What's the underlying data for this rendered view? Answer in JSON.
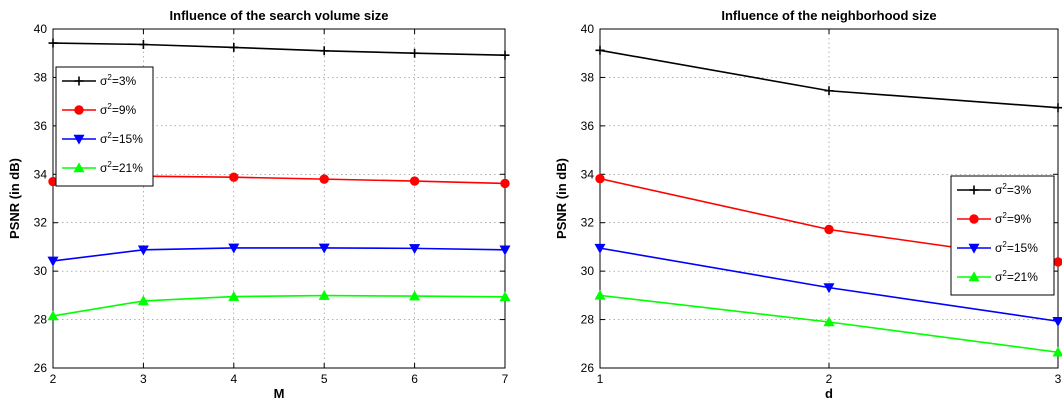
{
  "chart_data": [
    {
      "type": "line",
      "title": "Influence of the search volume size",
      "xlabel": "M",
      "ylabel": "PSNR (in dB)",
      "x": [
        2,
        3,
        4,
        5,
        6,
        7
      ],
      "xlim": [
        2,
        7
      ],
      "ylim": [
        26,
        40
      ],
      "xticks": [
        "2",
        "3",
        "4",
        "5",
        "6",
        "7"
      ],
      "yticks": [
        "26",
        "28",
        "30",
        "32",
        "34",
        "36",
        "38",
        "40"
      ],
      "grid": true,
      "legend_position": "top-left",
      "series": [
        {
          "name": "σ²=3%",
          "name_base": "σ",
          "name_sup": "2",
          "name_tail": "=3%",
          "marker": "plus",
          "color": "#000000",
          "values": [
            39.42,
            39.36,
            39.24,
            39.1,
            39.0,
            38.92
          ]
        },
        {
          "name": "σ²=9%",
          "name_base": "σ",
          "name_sup": "2",
          "name_tail": "=9%",
          "marker": "circle",
          "color": "#ff0000",
          "values": [
            33.7,
            33.92,
            33.88,
            33.8,
            33.72,
            33.62
          ]
        },
        {
          "name": "σ²=15%",
          "name_base": "σ",
          "name_sup": "2",
          "name_tail": "=15%",
          "marker": "triangle-down",
          "color": "#0000ff",
          "values": [
            30.42,
            30.88,
            30.96,
            30.96,
            30.94,
            30.88
          ]
        },
        {
          "name": "σ²=21%",
          "name_base": "σ",
          "name_sup": "2",
          "name_tail": "=21%",
          "marker": "triangle-up",
          "color": "#00ff00",
          "values": [
            28.15,
            28.77,
            28.95,
            28.99,
            28.97,
            28.94
          ]
        }
      ]
    },
    {
      "type": "line",
      "title": "Influence of the neighborhood size",
      "xlabel": "d",
      "ylabel": "PSNR (in dB)",
      "x": [
        1,
        2,
        3
      ],
      "xlim": [
        1,
        3
      ],
      "ylim": [
        26,
        40
      ],
      "xticks": [
        "1",
        "2",
        "3"
      ],
      "yticks": [
        "26",
        "28",
        "30",
        "32",
        "34",
        "36",
        "38",
        "40"
      ],
      "grid": true,
      "legend_position": "right",
      "series": [
        {
          "name": "σ²=3%",
          "name_base": "σ",
          "name_sup": "2",
          "name_tail": "=3%",
          "marker": "plus",
          "color": "#000000",
          "values": [
            39.12,
            37.45,
            36.75
          ]
        },
        {
          "name": "σ²=9%",
          "name_base": "σ",
          "name_sup": "2",
          "name_tail": "=9%",
          "marker": "circle",
          "color": "#ff0000",
          "values": [
            33.82,
            31.72,
            30.38
          ]
        },
        {
          "name": "σ²=15%",
          "name_base": "σ",
          "name_sup": "2",
          "name_tail": "=15%",
          "marker": "triangle-down",
          "color": "#0000ff",
          "values": [
            30.95,
            29.32,
            27.93
          ]
        },
        {
          "name": "σ²=21%",
          "name_base": "σ",
          "name_sup": "2",
          "name_tail": "=21%",
          "marker": "triangle-up",
          "color": "#00ff00",
          "values": [
            29.0,
            27.9,
            26.65
          ]
        }
      ]
    }
  ]
}
